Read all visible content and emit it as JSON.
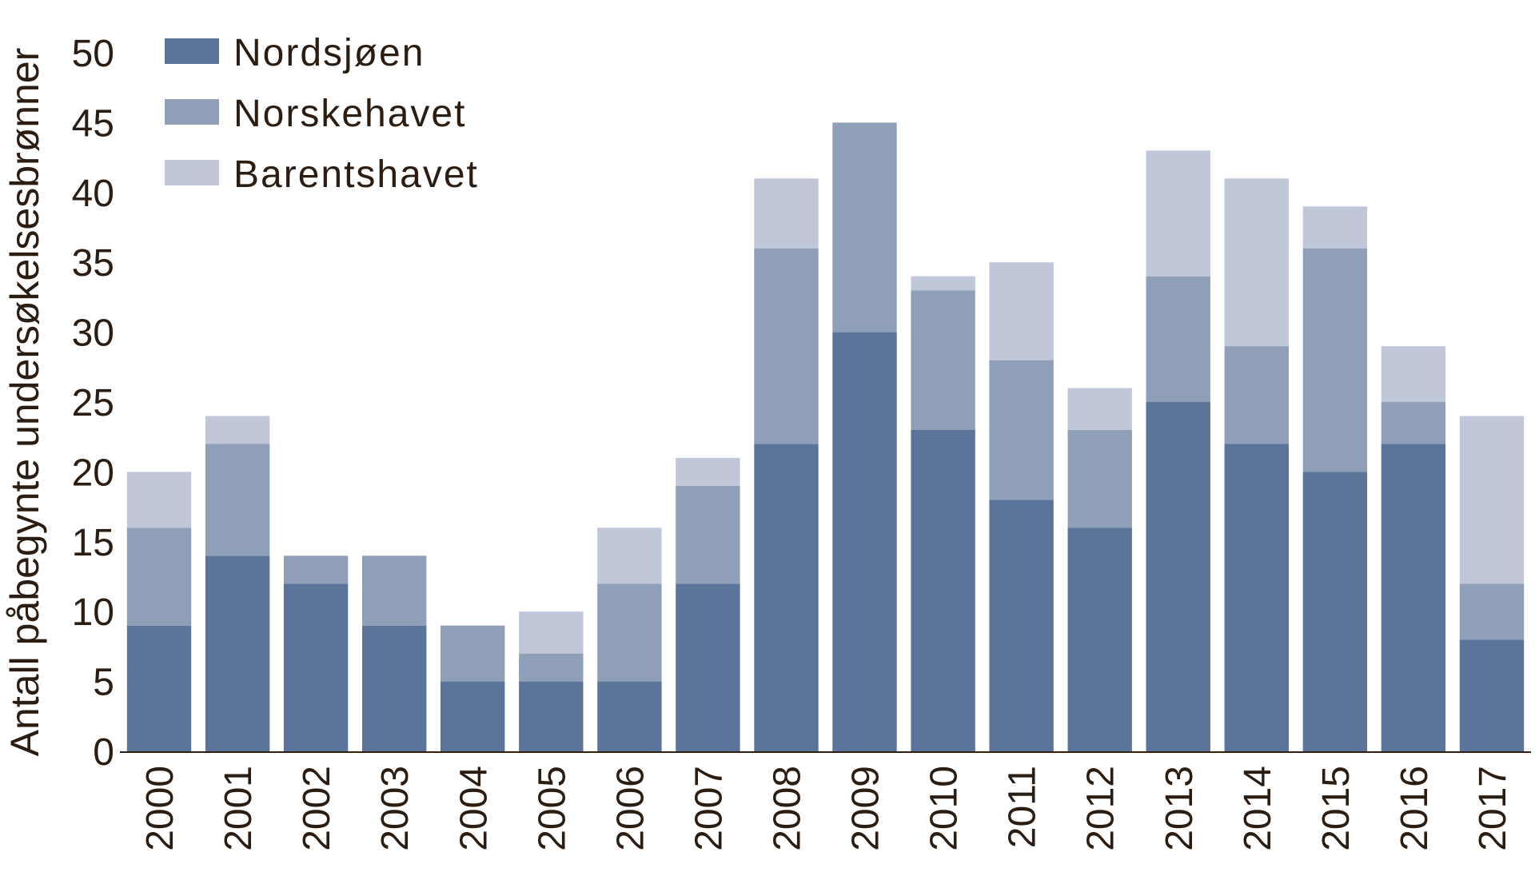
{
  "chart_data": {
    "type": "bar",
    "stacked": true,
    "title": "",
    "xlabel": "",
    "ylabel": "Antall påbegynte undersøkelsesbrønner",
    "ylim": [
      0,
      50
    ],
    "yticks": [
      0,
      5,
      10,
      15,
      20,
      25,
      30,
      35,
      40,
      45,
      50
    ],
    "grid": false,
    "legend_position": "top-left",
    "categories": [
      "2000",
      "2001",
      "2002",
      "2003",
      "2004",
      "2005",
      "2006",
      "2007",
      "2008",
      "2009",
      "2010",
      "2011",
      "2012",
      "2013",
      "2014",
      "2015",
      "2016",
      "2017"
    ],
    "series": [
      {
        "name": "Nordsjøen",
        "color": "#5a7599",
        "values": [
          9,
          14,
          12,
          9,
          5,
          5,
          5,
          12,
          22,
          30,
          23,
          18,
          16,
          25,
          22,
          20,
          22,
          8
        ]
      },
      {
        "name": "Norskehavet",
        "color": "#8f9fb8",
        "values": [
          7,
          8,
          2,
          5,
          4,
          2,
          7,
          7,
          14,
          15,
          10,
          10,
          7,
          9,
          7,
          16,
          3,
          4
        ]
      },
      {
        "name": "Barentshavet",
        "color": "#c0c7d9",
        "values": [
          4,
          2,
          0,
          0,
          0,
          3,
          4,
          2,
          5,
          0,
          1,
          7,
          3,
          9,
          12,
          3,
          4,
          12
        ]
      }
    ]
  }
}
